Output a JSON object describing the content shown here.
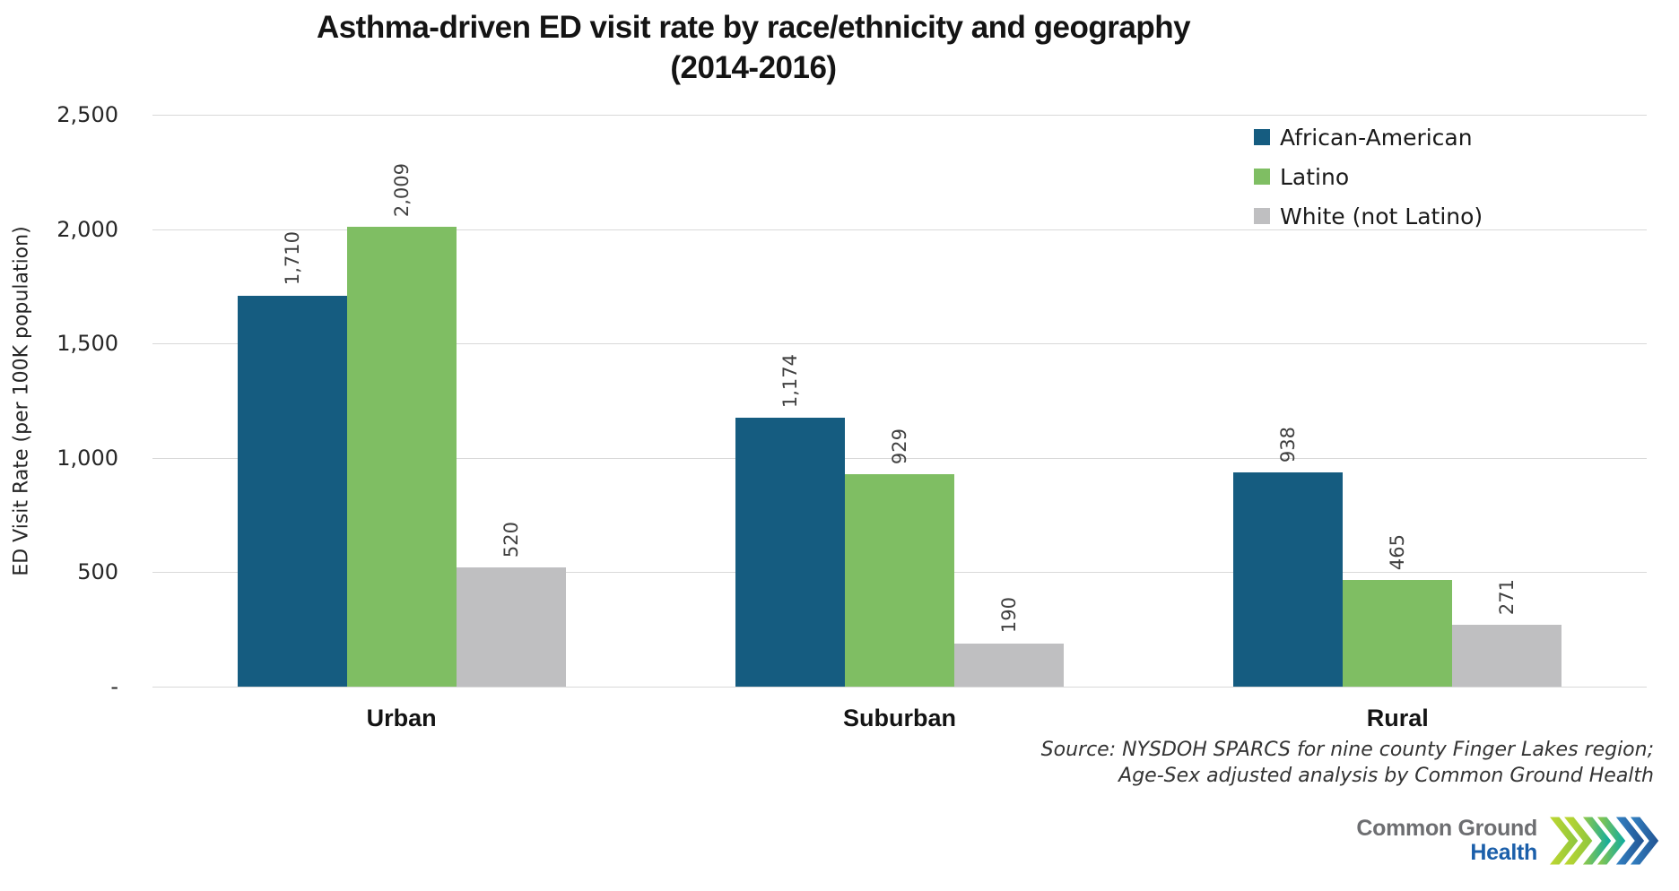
{
  "title": {
    "line1": "Asthma-driven ED visit rate by race/ethnicity and geography",
    "line2": "(2014-2016)"
  },
  "chart_data": {
    "type": "bar",
    "title": "Asthma-driven ED visit rate by race/ethnicity and geography (2014-2016)",
    "categories": [
      "Urban",
      "Suburban",
      "Rural"
    ],
    "series": [
      {
        "name": "African-American",
        "color": "#155C80",
        "values": [
          1710,
          1174,
          938
        ],
        "value_labels": [
          "1,710",
          "1,174",
          "938"
        ]
      },
      {
        "name": "Latino",
        "color": "#7FBE63",
        "values": [
          2009,
          929,
          465
        ],
        "value_labels": [
          "2,009",
          "929",
          "465"
        ]
      },
      {
        "name": "White (not Latino)",
        "color": "#BFBFC1",
        "values": [
          520,
          190,
          271
        ],
        "value_labels": [
          "520",
          "190",
          "271"
        ]
      }
    ],
    "xlabel": "",
    "ylabel": "ED Visit Rate (per 100K population)",
    "ylim": [
      0,
      2500
    ],
    "yticks": [
      {
        "value": 0,
        "label": "-"
      },
      {
        "value": 500,
        "label": "500"
      },
      {
        "value": 1000,
        "label": "1,000"
      },
      {
        "value": 1500,
        "label": "1,500"
      },
      {
        "value": 2000,
        "label": "2,000"
      },
      {
        "value": 2500,
        "label": "2,500"
      }
    ],
    "grid": true,
    "gridline_color": "#D9D9D9",
    "legend_position": "top-right",
    "value_label_rotation": 90
  },
  "source": {
    "line1": "Source: NYSDOH SPARCS for nine county Finger Lakes region;",
    "line2": "Age-Sex adjusted analysis by Common Ground Health"
  },
  "logo": {
    "name_line1": "Common Ground",
    "name_line2": "Health",
    "text_color_line1": "#6D6E71",
    "text_color_line2": "#1B5FAA",
    "chevron_colors": [
      "#AFD136",
      "#8CC63F",
      "#00A79D",
      "#1B4E8F"
    ]
  }
}
